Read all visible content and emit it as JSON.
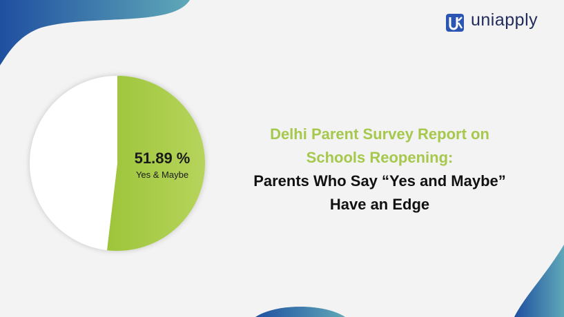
{
  "brand": "uniapply",
  "chart_data": {
    "type": "pie",
    "title": "Delhi Parent Survey Report on Schools Reopening:",
    "subtitle": "Parents Who Say “Yes and Maybe” Have an Edge",
    "categories": [
      "Yes & Maybe",
      null
    ],
    "values": [
      51.89,
      48.11
    ],
    "value_labels": [
      "51.89 %",
      null
    ],
    "colors": [
      "#a9cc4a",
      "#ffffff"
    ]
  }
}
